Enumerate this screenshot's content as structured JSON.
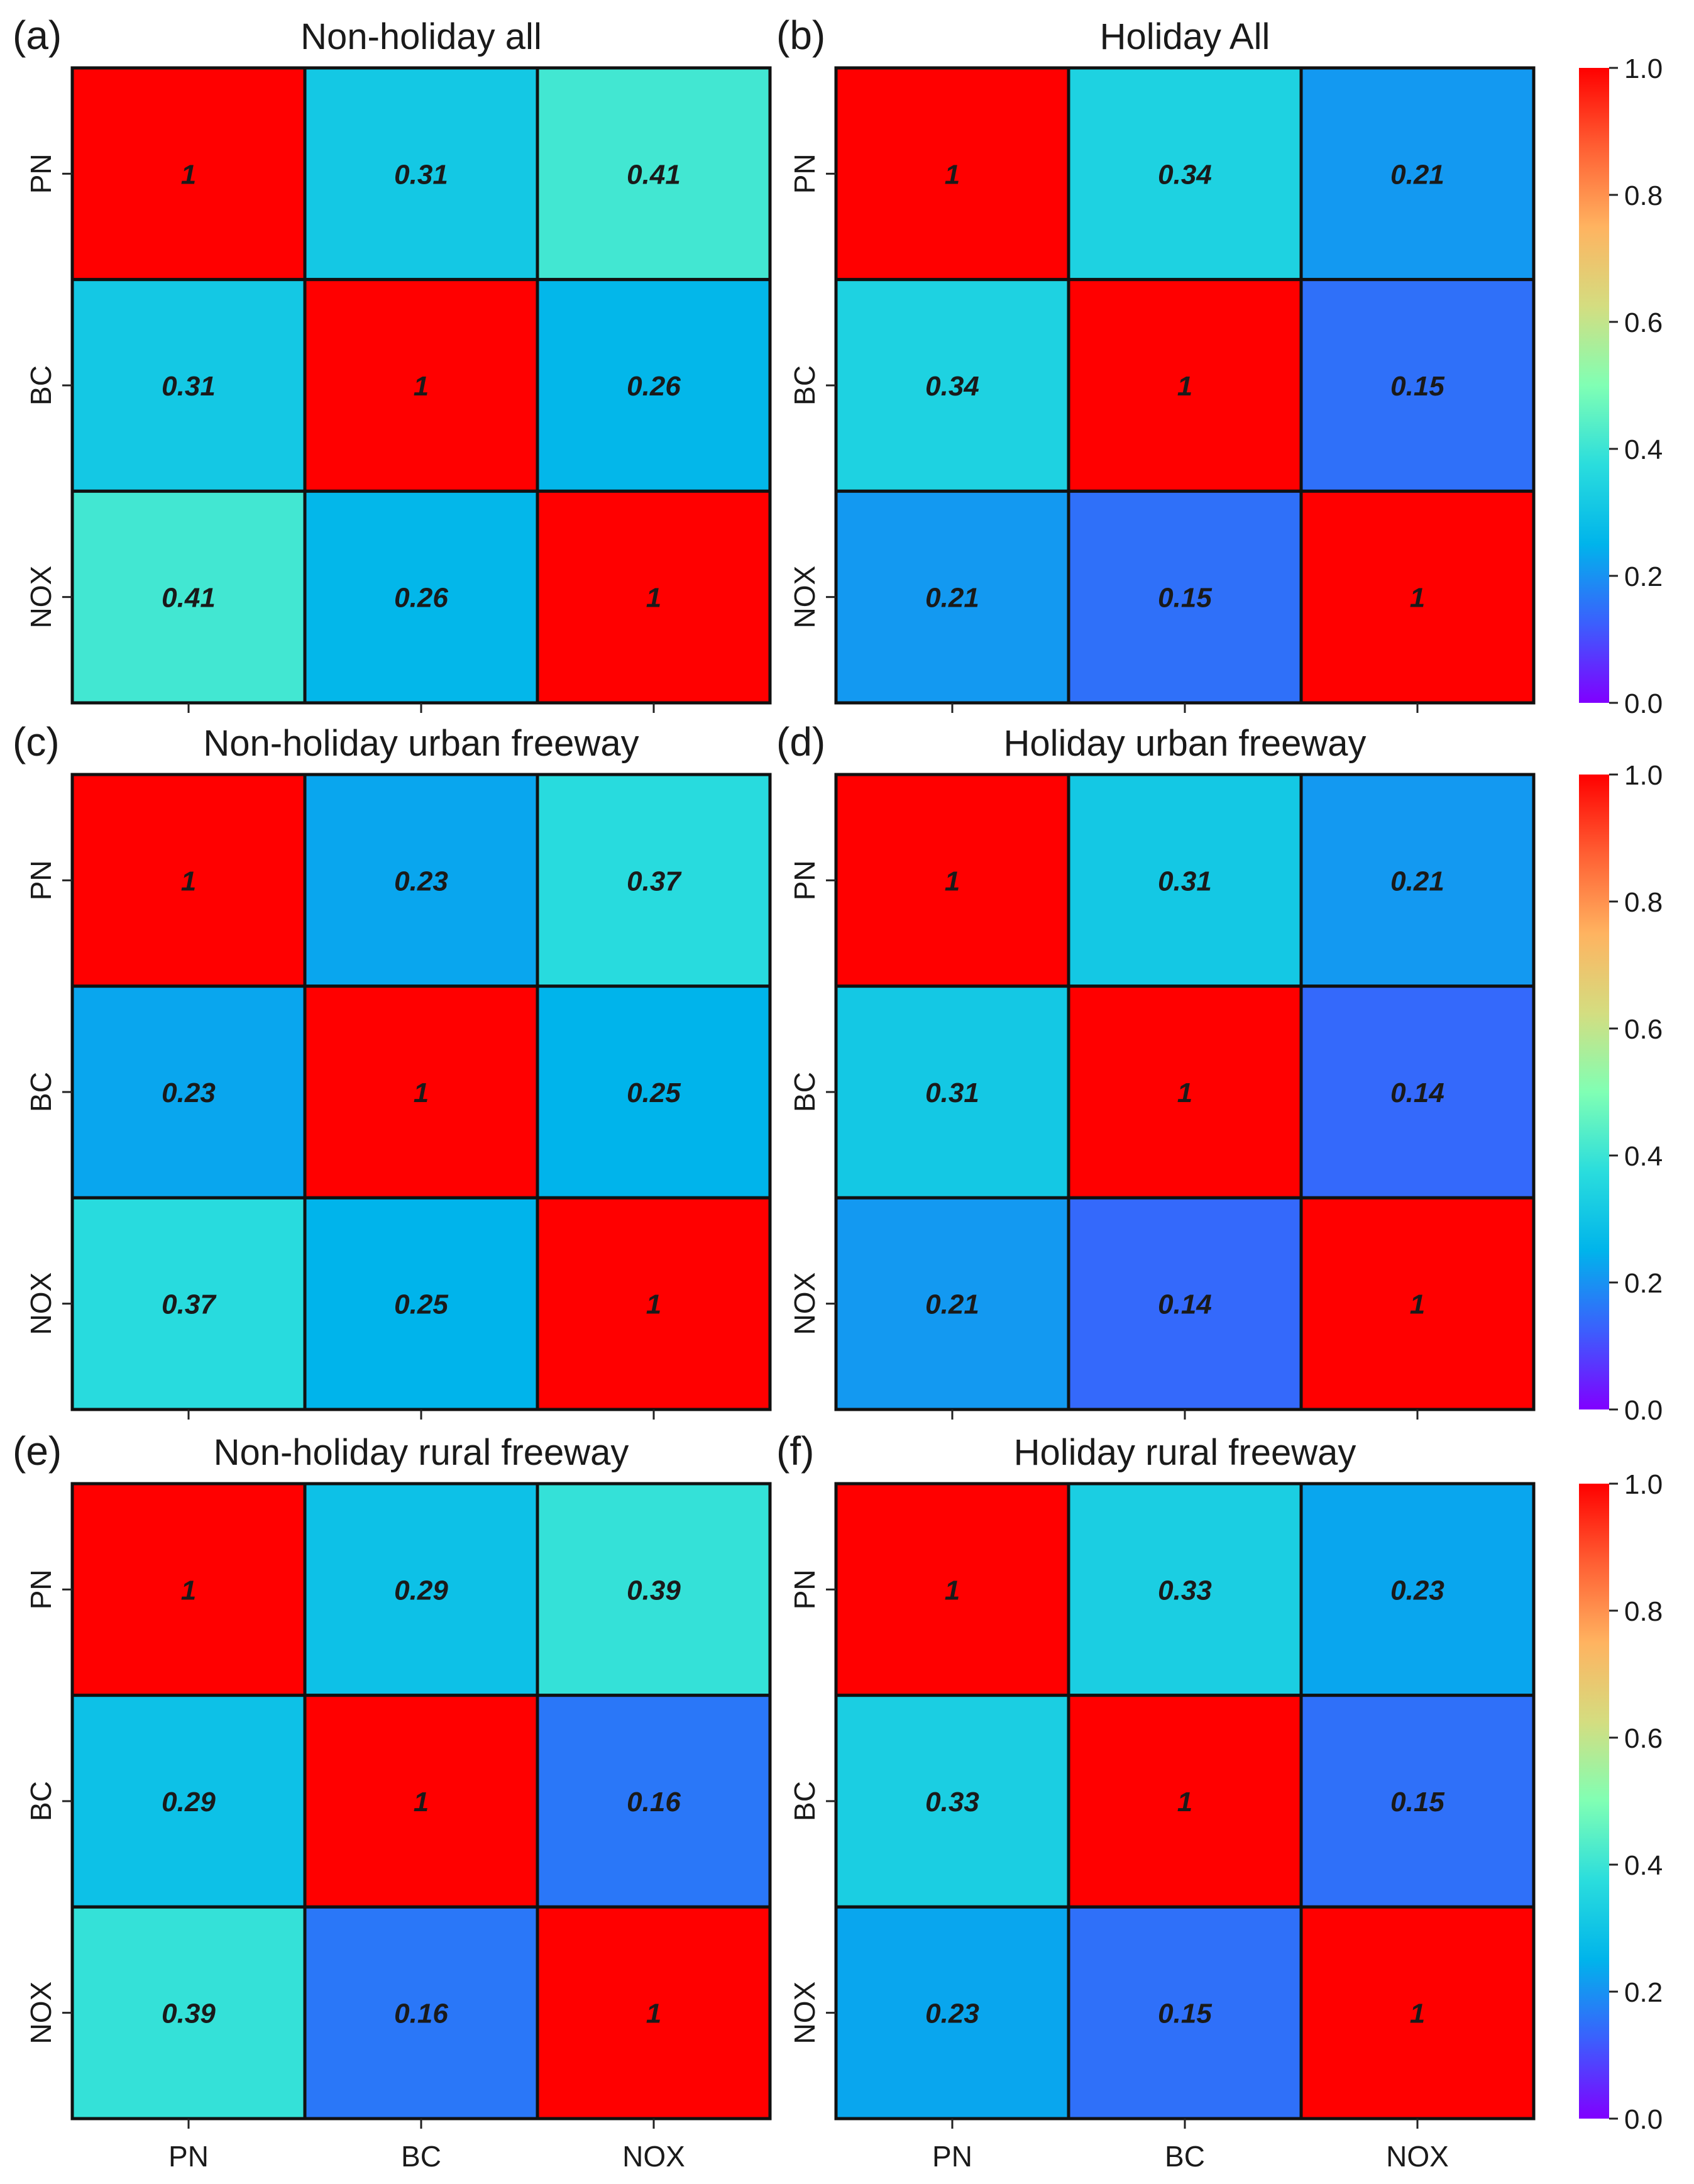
{
  "chart_data": [
    {
      "type": "heatmap",
      "panel_label": "(a)",
      "title": "Non-holiday all",
      "x_labels": [
        "PN",
        "BC",
        "NOX"
      ],
      "y_labels": [
        "PN",
        "BC",
        "NOX"
      ],
      "values": [
        [
          1,
          0.31,
          0.41
        ],
        [
          0.31,
          1,
          0.26
        ],
        [
          0.41,
          0.26,
          1
        ]
      ],
      "show_x_tick_labels": false
    },
    {
      "type": "heatmap",
      "panel_label": "(b)",
      "title": "Holiday All",
      "x_labels": [
        "PN",
        "BC",
        "NOX"
      ],
      "y_labels": [
        "PN",
        "BC",
        "NOX"
      ],
      "values": [
        [
          1,
          0.34,
          0.21
        ],
        [
          0.34,
          1,
          0.15
        ],
        [
          0.21,
          0.15,
          1
        ]
      ],
      "show_x_tick_labels": false
    },
    {
      "type": "heatmap",
      "panel_label": "(c)",
      "title": "Non-holiday urban freeway",
      "x_labels": [
        "PN",
        "BC",
        "NOX"
      ],
      "y_labels": [
        "PN",
        "BC",
        "NOX"
      ],
      "values": [
        [
          1,
          0.23,
          0.37
        ],
        [
          0.23,
          1,
          0.25
        ],
        [
          0.37,
          0.25,
          1
        ]
      ],
      "show_x_tick_labels": false
    },
    {
      "type": "heatmap",
      "panel_label": "(d)",
      "title": "Holiday urban freeway",
      "x_labels": [
        "PN",
        "BC",
        "NOX"
      ],
      "y_labels": [
        "PN",
        "BC",
        "NOX"
      ],
      "values": [
        [
          1,
          0.31,
          0.21
        ],
        [
          0.31,
          1,
          0.14
        ],
        [
          0.21,
          0.14,
          1
        ]
      ],
      "show_x_tick_labels": false
    },
    {
      "type": "heatmap",
      "panel_label": "(e)",
      "title": "Non-holiday rural freeway",
      "x_labels": [
        "PN",
        "BC",
        "NOX"
      ],
      "y_labels": [
        "PN",
        "BC",
        "NOX"
      ],
      "values": [
        [
          1,
          0.29,
          0.39
        ],
        [
          0.29,
          1,
          0.16
        ],
        [
          0.39,
          0.16,
          1
        ]
      ],
      "show_x_tick_labels": true
    },
    {
      "type": "heatmap",
      "panel_label": "(f)",
      "title": "Holiday rural freeway",
      "x_labels": [
        "PN",
        "BC",
        "NOX"
      ],
      "y_labels": [
        "PN",
        "BC",
        "NOX"
      ],
      "values": [
        [
          1,
          0.33,
          0.23
        ],
        [
          0.33,
          1,
          0.15
        ],
        [
          0.23,
          0.15,
          1
        ]
      ],
      "show_x_tick_labels": true
    }
  ],
  "colorbar": {
    "range": [
      0,
      1
    ],
    "ticks": [
      "0.0",
      "0.2",
      "0.4",
      "0.6",
      "0.8",
      "1.0"
    ],
    "colormap": "rainbow",
    "stops": [
      "#8000ff",
      "#3b5ffd",
      "#00b4eb",
      "#2adddd",
      "#80ffb4",
      "#d4dd80",
      "#ffb360",
      "#ff5f33",
      "#ff0000"
    ]
  },
  "colors": {
    "cell_border": "#111111",
    "text": "#1a1a1a"
  }
}
